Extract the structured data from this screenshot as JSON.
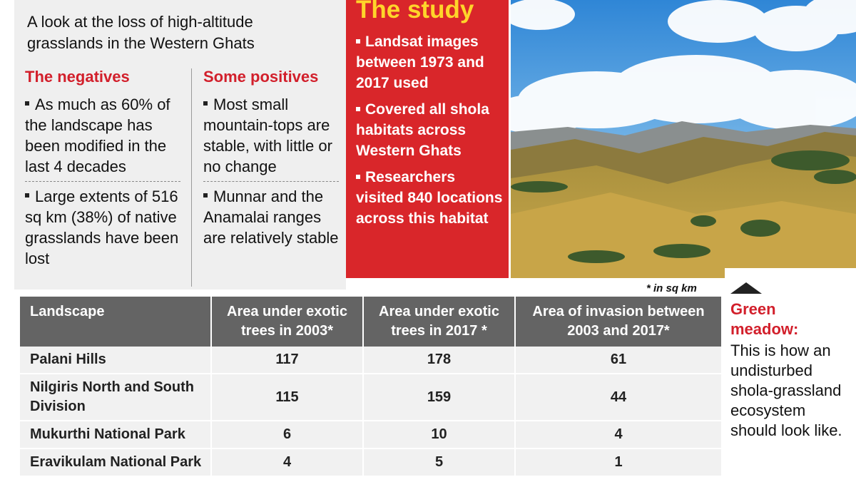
{
  "intro": "A look at the loss of high-altitude grasslands in the Western Ghats",
  "negatives": {
    "heading": "The negatives",
    "items": [
      "As much as 60% of the landscape has been modified in the last 4 decades",
      "Large extents of 516 sq km (38%) of native grasslands have been lost"
    ]
  },
  "positives": {
    "heading": "Some positives",
    "items": [
      "Most small mountain-tops are stable, with little or no change",
      "Munnar and the Anamalai ranges are relatively stable"
    ]
  },
  "study": {
    "title": "The study",
    "items": [
      "Landsat images between 1973 and 2017 used",
      "Covered all shola habitats across Western Ghats",
      "Researchers visited 840 locations across this habitat"
    ]
  },
  "table_note": "* in sq km",
  "table": {
    "headers": [
      "Landscape",
      "Area under exotic trees in 2003*",
      "Area under exotic trees in 2017 *",
      "Area of invasion between 2003 and 2017*"
    ],
    "rows": [
      [
        "Palani Hills",
        "117",
        "178",
        "61"
      ],
      [
        "Nilgiris North and South Division",
        "115",
        "159",
        "44"
      ],
      [
        "Mukurthi National Park",
        "6",
        "10",
        "4"
      ],
      [
        "Eravikulam National Park",
        "4",
        "5",
        "1"
      ]
    ]
  },
  "caption": {
    "heading": "Green meadow:",
    "text": "This is how an undisturbed shola-grassland ecosystem should look like."
  },
  "colors": {
    "accent_red": "#d21f2b",
    "study_bg": "#d9262a",
    "study_title": "#ffd52a",
    "table_header": "#646464"
  }
}
